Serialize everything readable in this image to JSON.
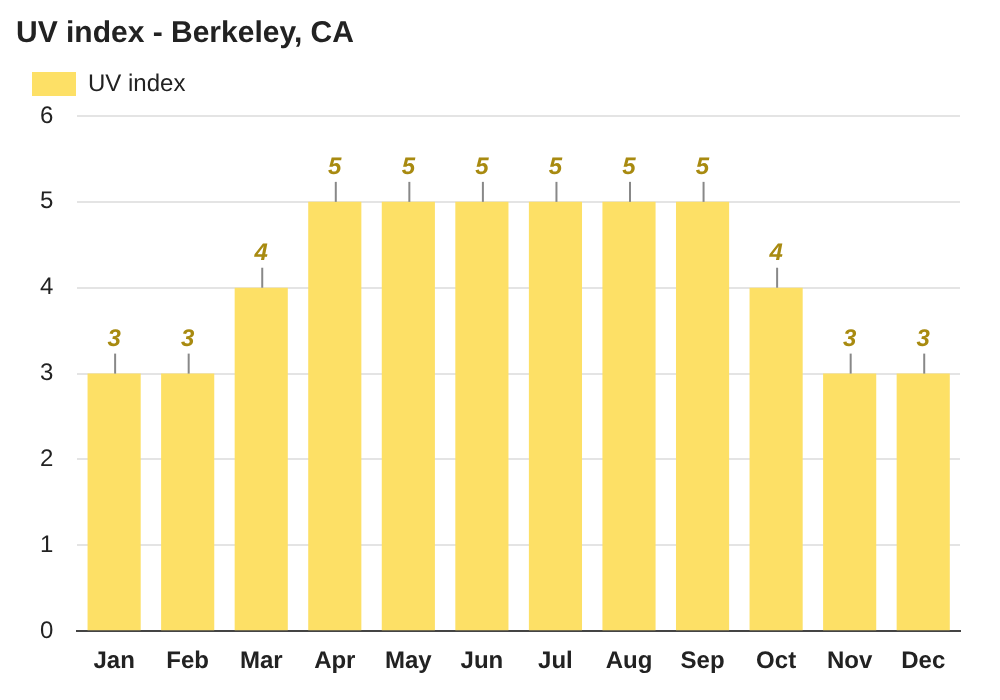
{
  "chart_data": {
    "type": "bar",
    "title": "UV index - Berkeley, CA",
    "categories": [
      "Jan",
      "Feb",
      "Mar",
      "Apr",
      "May",
      "Jun",
      "Jul",
      "Aug",
      "Sep",
      "Oct",
      "Nov",
      "Dec"
    ],
    "series": [
      {
        "name": "UV index",
        "color": "#fde066",
        "values": [
          3,
          3,
          4,
          5,
          5,
          5,
          5,
          5,
          5,
          4,
          3,
          3
        ]
      }
    ],
    "ylim": [
      0,
      6
    ],
    "yticks": [
      0,
      1,
      2,
      3,
      4,
      5,
      6
    ],
    "grid": "y",
    "legend": "top left",
    "data_labels": true
  }
}
